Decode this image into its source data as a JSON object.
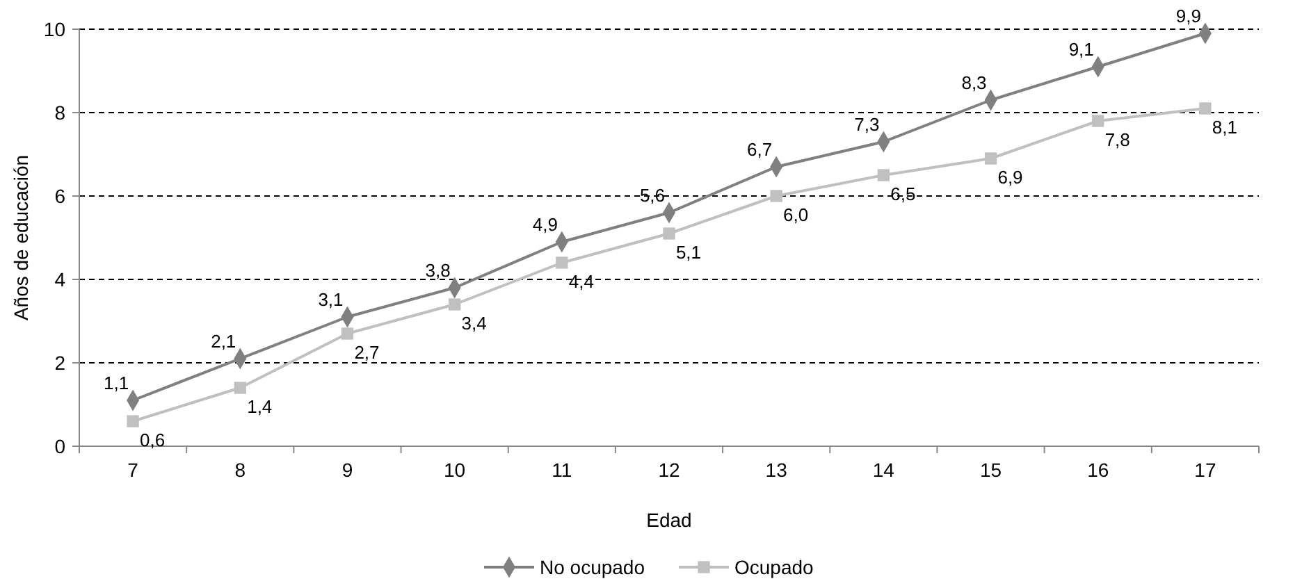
{
  "chart_data": {
    "type": "line",
    "xlabel": "Edad",
    "ylabel": "Años de educación",
    "categories": [
      "7",
      "8",
      "9",
      "10",
      "11",
      "12",
      "13",
      "14",
      "15",
      "16",
      "17"
    ],
    "ylim": [
      0,
      10
    ],
    "yticks": [
      0,
      2,
      4,
      6,
      8,
      10
    ],
    "grid": "y",
    "legend": "bottom",
    "line_style": "solid",
    "series": [
      {
        "name": "No ocupado",
        "color": "#808080",
        "marker": "diamond",
        "values": [
          1.1,
          2.1,
          3.1,
          3.8,
          4.9,
          5.6,
          6.7,
          7.3,
          8.3,
          9.1,
          9.9
        ],
        "value_labels": [
          "1,1",
          "2,1",
          "3,1",
          "3,8",
          "4,9",
          "5,6",
          "6,7",
          "7,3",
          "8,3",
          "9,1",
          "9,9"
        ]
      },
      {
        "name": "Ocupado",
        "color": "#c0c0c0",
        "marker": "square",
        "values": [
          0.6,
          1.4,
          2.7,
          3.4,
          4.4,
          5.1,
          6.0,
          6.5,
          6.9,
          7.8,
          8.1
        ],
        "value_labels": [
          "0,6",
          "1,4",
          "2,7",
          "3,4",
          "4,4",
          "5,1",
          "6,0",
          "6,5",
          "6,9",
          "7,8",
          "8,1"
        ]
      }
    ]
  }
}
